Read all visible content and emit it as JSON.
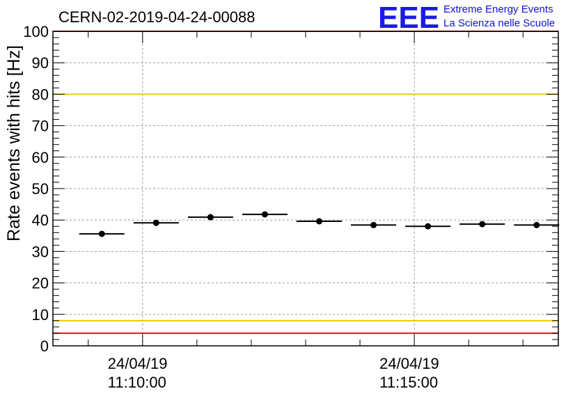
{
  "chart_data": {
    "type": "scatter",
    "title": "CERN-02-2019-04-24-00088",
    "ylabel": "Rate events with hits [Hz]",
    "xlabel": "",
    "ylim": [
      0,
      100
    ],
    "y_ticks": [
      "0",
      "10",
      "20",
      "30",
      "40",
      "50",
      "60",
      "70",
      "80",
      "90",
      "100"
    ],
    "x_ticks": [
      {
        "date": "24/04/19",
        "time": "11:10:00",
        "minute": 10
      },
      {
        "date": "24/04/19",
        "time": "11:15:00",
        "minute": 15
      }
    ],
    "x_range_minutes": [
      8.35,
      17.65
    ],
    "bin_width_minutes": 0.8333,
    "points": [
      {
        "x": 9.25,
        "y": 35.6
      },
      {
        "x": 10.25,
        "y": 39.1
      },
      {
        "x": 11.25,
        "y": 40.9
      },
      {
        "x": 12.25,
        "y": 41.8
      },
      {
        "x": 13.25,
        "y": 39.6
      },
      {
        "x": 14.25,
        "y": 38.4
      },
      {
        "x": 15.25,
        "y": 38.0
      },
      {
        "x": 16.25,
        "y": 38.7
      },
      {
        "x": 17.25,
        "y": 38.4
      }
    ],
    "reference_lines": [
      {
        "y": 100,
        "color": "#ee1111"
      },
      {
        "y": 80,
        "color": "#f2cc00"
      },
      {
        "y": 8,
        "color": "#f2cc00"
      },
      {
        "y": 4,
        "color": "#ee1111"
      }
    ],
    "grid": true,
    "marker_color": "#000000"
  },
  "logo": {
    "mark": "EEE",
    "line1": "Extreme Energy Events",
    "line2": "La Scienza nelle Scuole",
    "color": "#1a1ae6"
  }
}
